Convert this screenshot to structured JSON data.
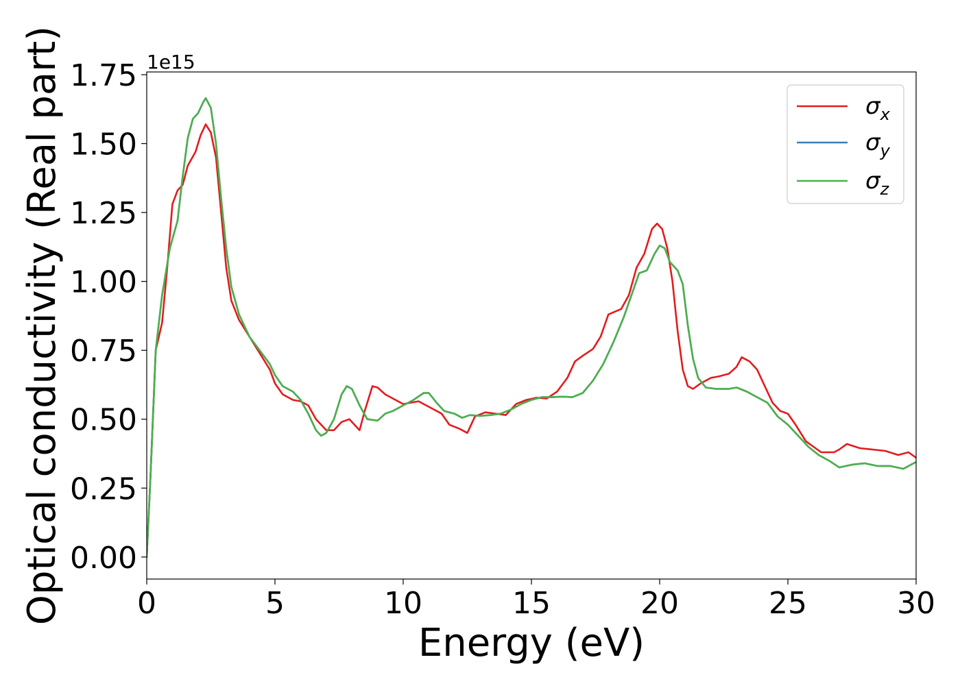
{
  "chart_data": {
    "type": "line",
    "title": "",
    "xlabel": "Energy (eV)",
    "ylabel": "Optical conductivity (Real part)",
    "y_offset_label": "1e15",
    "xlim": [
      0,
      30
    ],
    "ylim": [
      -0.08,
      1.76
    ],
    "x_ticks": [
      0,
      5,
      10,
      15,
      20,
      25,
      30
    ],
    "x_tick_labels": [
      "0",
      "5",
      "10",
      "15",
      "20",
      "25",
      "30"
    ],
    "y_ticks": [
      0.0,
      0.25,
      0.5,
      0.75,
      1.0,
      1.25,
      1.5,
      1.75
    ],
    "y_tick_labels": [
      "0.00",
      "0.25",
      "0.50",
      "0.75",
      "1.00",
      "1.25",
      "1.50",
      "1.75"
    ],
    "grid": false,
    "legend_position": "top-right",
    "series": [
      {
        "name": "σx",
        "symbol": "σ",
        "subscript": "x",
        "color": "#e41a1c",
        "points": [
          [
            0,
            0.0
          ],
          [
            0.15,
            0.3
          ],
          [
            0.35,
            0.75
          ],
          [
            0.6,
            0.85
          ],
          [
            0.8,
            1.05
          ],
          [
            1.0,
            1.28
          ],
          [
            1.2,
            1.33
          ],
          [
            1.4,
            1.35
          ],
          [
            1.6,
            1.42
          ],
          [
            1.9,
            1.47
          ],
          [
            2.1,
            1.53
          ],
          [
            2.3,
            1.57
          ],
          [
            2.5,
            1.54
          ],
          [
            2.7,
            1.45
          ],
          [
            2.9,
            1.25
          ],
          [
            3.1,
            1.05
          ],
          [
            3.3,
            0.93
          ],
          [
            3.6,
            0.86
          ],
          [
            4.0,
            0.8
          ],
          [
            4.4,
            0.74
          ],
          [
            4.8,
            0.68
          ],
          [
            5.0,
            0.63
          ],
          [
            5.3,
            0.59
          ],
          [
            5.7,
            0.57
          ],
          [
            6.0,
            0.565
          ],
          [
            6.3,
            0.55
          ],
          [
            6.6,
            0.5
          ],
          [
            7.0,
            0.46
          ],
          [
            7.3,
            0.46
          ],
          [
            7.6,
            0.49
          ],
          [
            7.9,
            0.5
          ],
          [
            8.1,
            0.48
          ],
          [
            8.3,
            0.46
          ],
          [
            8.5,
            0.53
          ],
          [
            8.8,
            0.62
          ],
          [
            9.0,
            0.615
          ],
          [
            9.3,
            0.59
          ],
          [
            9.7,
            0.57
          ],
          [
            10.0,
            0.555
          ],
          [
            10.3,
            0.56
          ],
          [
            10.6,
            0.565
          ],
          [
            11.0,
            0.545
          ],
          [
            11.5,
            0.52
          ],
          [
            11.8,
            0.48
          ],
          [
            12.2,
            0.465
          ],
          [
            12.5,
            0.45
          ],
          [
            12.8,
            0.51
          ],
          [
            13.2,
            0.525
          ],
          [
            13.6,
            0.52
          ],
          [
            14.0,
            0.515
          ],
          [
            14.4,
            0.555
          ],
          [
            14.8,
            0.57
          ],
          [
            15.2,
            0.578
          ],
          [
            15.6,
            0.575
          ],
          [
            16.0,
            0.6
          ],
          [
            16.4,
            0.65
          ],
          [
            16.7,
            0.71
          ],
          [
            17.0,
            0.73
          ],
          [
            17.4,
            0.755
          ],
          [
            17.7,
            0.8
          ],
          [
            18.0,
            0.88
          ],
          [
            18.5,
            0.9
          ],
          [
            18.8,
            0.95
          ],
          [
            19.1,
            1.05
          ],
          [
            19.4,
            1.1
          ],
          [
            19.7,
            1.19
          ],
          [
            19.9,
            1.21
          ],
          [
            20.1,
            1.19
          ],
          [
            20.3,
            1.12
          ],
          [
            20.5,
            1.0
          ],
          [
            20.7,
            0.82
          ],
          [
            20.9,
            0.68
          ],
          [
            21.1,
            0.62
          ],
          [
            21.3,
            0.61
          ],
          [
            21.6,
            0.63
          ],
          [
            22.0,
            0.65
          ],
          [
            22.3,
            0.655
          ],
          [
            22.7,
            0.665
          ],
          [
            23.0,
            0.69
          ],
          [
            23.2,
            0.725
          ],
          [
            23.5,
            0.71
          ],
          [
            23.8,
            0.68
          ],
          [
            24.1,
            0.62
          ],
          [
            24.4,
            0.56
          ],
          [
            24.7,
            0.53
          ],
          [
            25.0,
            0.52
          ],
          [
            25.3,
            0.48
          ],
          [
            25.7,
            0.42
          ],
          [
            26.0,
            0.4
          ],
          [
            26.3,
            0.38
          ],
          [
            26.8,
            0.38
          ],
          [
            27.0,
            0.39
          ],
          [
            27.3,
            0.41
          ],
          [
            27.8,
            0.395
          ],
          [
            28.3,
            0.39
          ],
          [
            28.8,
            0.385
          ],
          [
            29.3,
            0.37
          ],
          [
            29.7,
            0.38
          ],
          [
            30.0,
            0.36
          ]
        ]
      },
      {
        "name": "σy",
        "symbol": "σ",
        "subscript": "y",
        "color": "#377eb8",
        "points": [
          [
            0,
            0.0
          ],
          [
            0.15,
            0.3
          ],
          [
            0.35,
            0.75
          ],
          [
            0.6,
            0.95
          ],
          [
            0.9,
            1.12
          ],
          [
            1.2,
            1.22
          ],
          [
            1.4,
            1.38
          ],
          [
            1.6,
            1.52
          ],
          [
            1.8,
            1.59
          ],
          [
            2.0,
            1.61
          ],
          [
            2.2,
            1.65
          ],
          [
            2.3,
            1.665
          ],
          [
            2.5,
            1.63
          ],
          [
            2.7,
            1.5
          ],
          [
            2.9,
            1.3
          ],
          [
            3.1,
            1.12
          ],
          [
            3.3,
            0.98
          ],
          [
            3.6,
            0.88
          ],
          [
            4.0,
            0.8
          ],
          [
            4.4,
            0.75
          ],
          [
            4.8,
            0.7
          ],
          [
            5.0,
            0.66
          ],
          [
            5.3,
            0.62
          ],
          [
            5.7,
            0.6
          ],
          [
            6.0,
            0.57
          ],
          [
            6.3,
            0.52
          ],
          [
            6.6,
            0.46
          ],
          [
            6.8,
            0.44
          ],
          [
            7.0,
            0.45
          ],
          [
            7.3,
            0.5
          ],
          [
            7.6,
            0.59
          ],
          [
            7.8,
            0.62
          ],
          [
            8.0,
            0.61
          ],
          [
            8.3,
            0.55
          ],
          [
            8.6,
            0.5
          ],
          [
            9.0,
            0.495
          ],
          [
            9.3,
            0.52
          ],
          [
            9.6,
            0.53
          ],
          [
            10.0,
            0.55
          ],
          [
            10.4,
            0.57
          ],
          [
            10.8,
            0.595
          ],
          [
            11.0,
            0.595
          ],
          [
            11.3,
            0.56
          ],
          [
            11.6,
            0.53
          ],
          [
            12.0,
            0.52
          ],
          [
            12.3,
            0.505
          ],
          [
            12.6,
            0.515
          ],
          [
            13.0,
            0.512
          ],
          [
            13.4,
            0.515
          ],
          [
            13.8,
            0.52
          ],
          [
            14.2,
            0.535
          ],
          [
            14.6,
            0.555
          ],
          [
            15.0,
            0.57
          ],
          [
            15.4,
            0.58
          ],
          [
            15.8,
            0.58
          ],
          [
            16.2,
            0.582
          ],
          [
            16.6,
            0.58
          ],
          [
            17.0,
            0.595
          ],
          [
            17.4,
            0.64
          ],
          [
            17.8,
            0.7
          ],
          [
            18.2,
            0.78
          ],
          [
            18.6,
            0.87
          ],
          [
            18.9,
            0.95
          ],
          [
            19.2,
            1.03
          ],
          [
            19.5,
            1.04
          ],
          [
            19.8,
            1.1
          ],
          [
            20.0,
            1.13
          ],
          [
            20.2,
            1.12
          ],
          [
            20.4,
            1.07
          ],
          [
            20.7,
            1.04
          ],
          [
            20.9,
            0.99
          ],
          [
            21.1,
            0.84
          ],
          [
            21.3,
            0.72
          ],
          [
            21.5,
            0.65
          ],
          [
            21.8,
            0.615
          ],
          [
            22.2,
            0.61
          ],
          [
            22.7,
            0.61
          ],
          [
            23.0,
            0.615
          ],
          [
            23.4,
            0.6
          ],
          [
            23.8,
            0.58
          ],
          [
            24.2,
            0.56
          ],
          [
            24.6,
            0.51
          ],
          [
            25.0,
            0.48
          ],
          [
            25.4,
            0.44
          ],
          [
            25.8,
            0.4
          ],
          [
            26.2,
            0.37
          ],
          [
            26.6,
            0.35
          ],
          [
            27.0,
            0.325
          ],
          [
            27.5,
            0.335
          ],
          [
            28.0,
            0.34
          ],
          [
            28.5,
            0.33
          ],
          [
            29.0,
            0.33
          ],
          [
            29.5,
            0.32
          ],
          [
            30.0,
            0.345
          ]
        ]
      },
      {
        "name": "σz",
        "symbol": "σ",
        "subscript": "z",
        "color": "#4daf4a",
        "points": [
          [
            0,
            0.0
          ],
          [
            0.15,
            0.3
          ],
          [
            0.35,
            0.75
          ],
          [
            0.6,
            0.95
          ],
          [
            0.9,
            1.12
          ],
          [
            1.2,
            1.22
          ],
          [
            1.4,
            1.38
          ],
          [
            1.6,
            1.52
          ],
          [
            1.8,
            1.59
          ],
          [
            2.0,
            1.61
          ],
          [
            2.2,
            1.65
          ],
          [
            2.3,
            1.665
          ],
          [
            2.5,
            1.63
          ],
          [
            2.7,
            1.5
          ],
          [
            2.9,
            1.3
          ],
          [
            3.1,
            1.12
          ],
          [
            3.3,
            0.98
          ],
          [
            3.6,
            0.88
          ],
          [
            4.0,
            0.8
          ],
          [
            4.4,
            0.75
          ],
          [
            4.8,
            0.7
          ],
          [
            5.0,
            0.66
          ],
          [
            5.3,
            0.62
          ],
          [
            5.7,
            0.6
          ],
          [
            6.0,
            0.57
          ],
          [
            6.3,
            0.52
          ],
          [
            6.6,
            0.46
          ],
          [
            6.8,
            0.44
          ],
          [
            7.0,
            0.45
          ],
          [
            7.3,
            0.5
          ],
          [
            7.6,
            0.59
          ],
          [
            7.8,
            0.62
          ],
          [
            8.0,
            0.61
          ],
          [
            8.3,
            0.55
          ],
          [
            8.6,
            0.5
          ],
          [
            9.0,
            0.495
          ],
          [
            9.3,
            0.52
          ],
          [
            9.6,
            0.53
          ],
          [
            10.0,
            0.55
          ],
          [
            10.4,
            0.57
          ],
          [
            10.8,
            0.595
          ],
          [
            11.0,
            0.595
          ],
          [
            11.3,
            0.56
          ],
          [
            11.6,
            0.53
          ],
          [
            12.0,
            0.52
          ],
          [
            12.3,
            0.505
          ],
          [
            12.6,
            0.515
          ],
          [
            13.0,
            0.512
          ],
          [
            13.4,
            0.515
          ],
          [
            13.8,
            0.52
          ],
          [
            14.2,
            0.535
          ],
          [
            14.6,
            0.555
          ],
          [
            15.0,
            0.57
          ],
          [
            15.4,
            0.58
          ],
          [
            15.8,
            0.58
          ],
          [
            16.2,
            0.582
          ],
          [
            16.6,
            0.58
          ],
          [
            17.0,
            0.595
          ],
          [
            17.4,
            0.64
          ],
          [
            17.8,
            0.7
          ],
          [
            18.2,
            0.78
          ],
          [
            18.6,
            0.87
          ],
          [
            18.9,
            0.95
          ],
          [
            19.2,
            1.03
          ],
          [
            19.5,
            1.04
          ],
          [
            19.8,
            1.1
          ],
          [
            20.0,
            1.13
          ],
          [
            20.2,
            1.12
          ],
          [
            20.4,
            1.07
          ],
          [
            20.7,
            1.04
          ],
          [
            20.9,
            0.99
          ],
          [
            21.1,
            0.84
          ],
          [
            21.3,
            0.72
          ],
          [
            21.5,
            0.65
          ],
          [
            21.8,
            0.615
          ],
          [
            22.2,
            0.61
          ],
          [
            22.7,
            0.61
          ],
          [
            23.0,
            0.615
          ],
          [
            23.4,
            0.6
          ],
          [
            23.8,
            0.58
          ],
          [
            24.2,
            0.56
          ],
          [
            24.6,
            0.51
          ],
          [
            25.0,
            0.48
          ],
          [
            25.4,
            0.44
          ],
          [
            25.8,
            0.4
          ],
          [
            26.2,
            0.37
          ],
          [
            26.6,
            0.35
          ],
          [
            27.0,
            0.325
          ],
          [
            27.5,
            0.335
          ],
          [
            28.0,
            0.34
          ],
          [
            28.5,
            0.33
          ],
          [
            29.0,
            0.33
          ],
          [
            29.5,
            0.32
          ],
          [
            30.0,
            0.345
          ]
        ]
      }
    ]
  }
}
